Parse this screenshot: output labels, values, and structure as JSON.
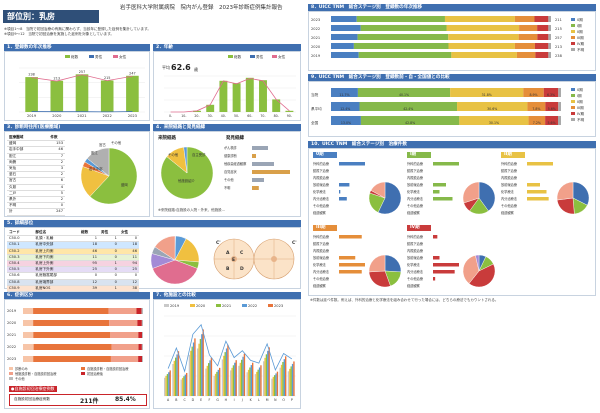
{
  "header": {
    "hospital": "岩手医科大学附属病院　院内がん登録　2023年診断症例集計報告",
    "title": "部位別：乳房",
    "notes": [
      "※項目1〜8　当院で初回治療の有無に関わらず、当該年に登録した症例を集計しています。",
      "※項目9〜12　当院で初回治療を実施した症例を対象としています。"
    ]
  },
  "sections": {
    "s1": "1．登録数の年次推移",
    "s2": "2．年齢",
    "s3": "3．診断時住所(医療圏域)",
    "s4": "4．来院経路と発見経緯",
    "s5": "5．詳細部位",
    "s6": "6．症例区分",
    "s7": "7．他施設との比較",
    "s8": "8．UICC TNM　総合ステージ別　登録数の年次推移",
    "s9": "9．UICC TNM　総合ステージ別　登録数前・自・全国値との比較",
    "s10": "10．UICC TNM　総合ステージ別　治療件数"
  },
  "chart_data": [
    {
      "type": "bar",
      "title": "1．登録数の年次推移",
      "categories": [
        "2019",
        "2020",
        "2021",
        "2022",
        "2023"
      ],
      "series": [
        {
          "name": "総数",
          "values": [
            238,
            213,
            257,
            215,
            247
          ]
        },
        {
          "name": "男性",
          "values": [
            3,
            2,
            2,
            1,
            3
          ]
        },
        {
          "name": "女性",
          "values": [
            235,
            211,
            255,
            214,
            244
          ]
        }
      ]
    },
    {
      "type": "bar",
      "title": "2．年齢",
      "mean_label": "平均",
      "mean_value": "62.6",
      "mean_unit": "歳",
      "categories": [
        "0-",
        "10-",
        "20-",
        "30-",
        "40-",
        "50-",
        "60-",
        "70-",
        "80-",
        "90-"
      ],
      "series": [
        {
          "name": "総数",
          "values": [
            0,
            0,
            2,
            12,
            52,
            48,
            57,
            53,
            21,
            2
          ]
        },
        {
          "name": "男性",
          "values": [
            0,
            0,
            0,
            0,
            0,
            1,
            1,
            1,
            0,
            0
          ]
        },
        {
          "name": "女性",
          "values": [
            0,
            0,
            2,
            12,
            52,
            47,
            56,
            52,
            21,
            2
          ]
        }
      ]
    },
    {
      "type": "pie",
      "title": "7．他施設との比較",
      "legend": [
        "2019",
        "2020",
        "2021",
        "2022",
        "2023"
      ]
    }
  ],
  "address_table": {
    "headers": [
      "医療圏域",
      "件数"
    ],
    "rows": [
      [
        "盛岡",
        "153"
      ],
      [
        "岩手中部",
        "46"
      ],
      [
        "胆江",
        "7"
      ],
      [
        "両磐",
        "2"
      ],
      [
        "気仙",
        "3"
      ],
      [
        "釜石",
        "2"
      ],
      [
        "宮古",
        "6"
      ],
      [
        "久慈",
        "4"
      ],
      [
        "二戸",
        "5"
      ],
      [
        "県外",
        "2"
      ],
      [
        "不明",
        "0"
      ],
      [
        "計",
        "247"
      ]
    ]
  },
  "address_pie": {
    "labels": [
      "盛岡",
      "岩手中部",
      "胆江",
      "宮古",
      "その他"
    ],
    "values": [
      153,
      46,
      7,
      6,
      35
    ]
  },
  "route": {
    "title": "来院経路",
    "labels": [
      "他施設紹介",
      "自主受診",
      "その他"
    ],
    "values": [
      212,
      30,
      5
    ],
    "found_title": "発見経緯",
    "found_rows": [
      "がん検診",
      "健康診断",
      "他疾患経過観察",
      "自覚症状",
      "その他",
      "不明"
    ],
    "found_values": [
      40,
      10,
      55,
      95,
      30,
      17
    ],
    "note": "※来院経路:自施設の入院・外来、他施設..."
  },
  "site_table": {
    "headers": [
      "コード",
      "部位名",
      "総数",
      "男性",
      "女性"
    ],
    "rows": [
      [
        "C50.0",
        "乳頭・乳輪",
        "1",
        "1",
        "0"
      ],
      [
        "C50.1",
        "乳房中央部",
        "18",
        "0",
        "18"
      ],
      [
        "C50.2",
        "乳房上内側",
        "46",
        "0",
        "46"
      ],
      [
        "C50.3",
        "乳房下内側",
        "11",
        "0",
        "11"
      ],
      [
        "C50.4",
        "乳房上外側",
        "95",
        "1",
        "94"
      ],
      [
        "C50.5",
        "乳房下外側",
        "25",
        "0",
        "25"
      ],
      [
        "C50.6",
        "乳房腋窩尾部",
        "0",
        "0",
        "0"
      ],
      [
        "C50.8",
        "乳房境界部",
        "12",
        "0",
        "12"
      ],
      [
        "C50.9",
        "乳房NOS",
        "39",
        "1",
        "38"
      ],
      [
        "",
        "計",
        "247",
        "3",
        "244"
      ]
    ],
    "pie": [
      1,
      18,
      46,
      11,
      95,
      25,
      12,
      39
    ]
  },
  "breast_diagram": {
    "labels": [
      "A",
      "B",
      "C",
      "D",
      "E",
      "C'",
      "C'"
    ]
  },
  "case_section": {
    "years": [
      "2019",
      "2020",
      "2021",
      "2022",
      "2023"
    ],
    "legend": [
      "診断のみ",
      "自施設診断・自施設初回治療",
      "他施設診断・自施設初回治療",
      "初回治療後",
      "その他"
    ],
    "bar_values": [
      [
        20,
        150,
        55,
        10,
        3
      ],
      [
        18,
        135,
        50,
        8,
        2
      ],
      [
        22,
        165,
        60,
        8,
        2
      ],
      [
        19,
        140,
        48,
        6,
        2
      ],
      [
        21,
        160,
        56,
        8,
        2
      ]
    ],
    "bottom_label": "自施設初回治療症例数",
    "bottom_value": "211件",
    "bottom_pct": "85.4%"
  },
  "compare_chart": {
    "legend": [
      "2019",
      "2020",
      "2021",
      "2022",
      "2023"
    ],
    "categories": [
      "A",
      "B",
      "C",
      "D",
      "E",
      "F",
      "G",
      "H",
      "I",
      "J",
      "K",
      "L",
      "M",
      "N",
      "O",
      "P"
    ]
  },
  "stage_trend": {
    "years": [
      "2023",
      "2022",
      "2021",
      "2020",
      "2019"
    ],
    "legend": [
      "0期",
      "I期",
      "II期",
      "III期",
      "IV期",
      "不明"
    ],
    "rows": [
      [
        11.7,
        40.1,
        31.8,
        8.9,
        6.3,
        1.2
      ],
      [
        13.5,
        39.0,
        33.0,
        8.2,
        5.1,
        1.2
      ],
      [
        12.1,
        41.2,
        32.0,
        8.5,
        5.0,
        1.2
      ],
      [
        10.4,
        43.0,
        30.2,
        9.1,
        6.1,
        1.2
      ],
      [
        12.6,
        42.1,
        29.8,
        8.4,
        5.9,
        1.2
      ]
    ],
    "counts": [
      "211",
      "215",
      "257",
      "213",
      "238"
    ]
  },
  "stage_compare": {
    "rows_labels": [
      "当院",
      "県平均",
      "全国"
    ],
    "legend": [
      "0期",
      "I期",
      "II期",
      "III期",
      "IV期",
      "不明"
    ],
    "rows": [
      [
        11.7,
        40.1,
        31.8,
        8.9,
        6.3,
        1.2
      ],
      [
        12.4,
        42.4,
        30.6,
        7.8,
        5.6,
        1.2
      ],
      [
        13.0,
        42.8,
        30.1,
        7.2,
        5.6,
        1.3
      ]
    ],
    "labels": [
      [
        "11.7%",
        "40.1%",
        "31.8%",
        "8.9%",
        "6.3%"
      ],
      [
        "12.4%",
        "42.4%",
        "30.6%",
        "7.8%",
        "5.6%"
      ],
      [
        "13.0%",
        "42.8%",
        "30.1%",
        "7.2%",
        "5.6%"
      ]
    ]
  },
  "treatment": {
    "panel_titles": [
      "0期",
      "I期",
      "II期",
      "III期",
      "IV期"
    ],
    "rows": [
      "外科的治療",
      "鏡視下治療",
      "内視鏡治療",
      "放射線治療",
      "化学療法",
      "内分泌療法",
      "その他治療",
      "経過観察"
    ],
    "values": [
      [
        20,
        0,
        0,
        8,
        1,
        6,
        0,
        0
      ],
      [
        80,
        0,
        0,
        40,
        20,
        60,
        0,
        0
      ],
      [
        60,
        0,
        0,
        30,
        45,
        50,
        0,
        0
      ],
      [
        14,
        0,
        0,
        10,
        16,
        14,
        0,
        0
      ],
      [
        2,
        0,
        0,
        3,
        12,
        10,
        1,
        0
      ]
    ],
    "note": "※件数は延べ件数。例えば、外科的治療と化学療法を組み合わせて行った場合には、どちらの療法でもカウントされる。"
  },
  "colors": {
    "header": "#2f4f78",
    "section": "#3f6fb0",
    "stage0": "#4a7fc1",
    "stage1": "#86b94a",
    "stage2": "#e8c244",
    "stage3": "#e58e3a",
    "stage4": "#c93b3b",
    "unknown": "#a9a9a9",
    "green": "#8bbf3f",
    "orange": "#e8743b",
    "salmon": "#f1a08a"
  }
}
